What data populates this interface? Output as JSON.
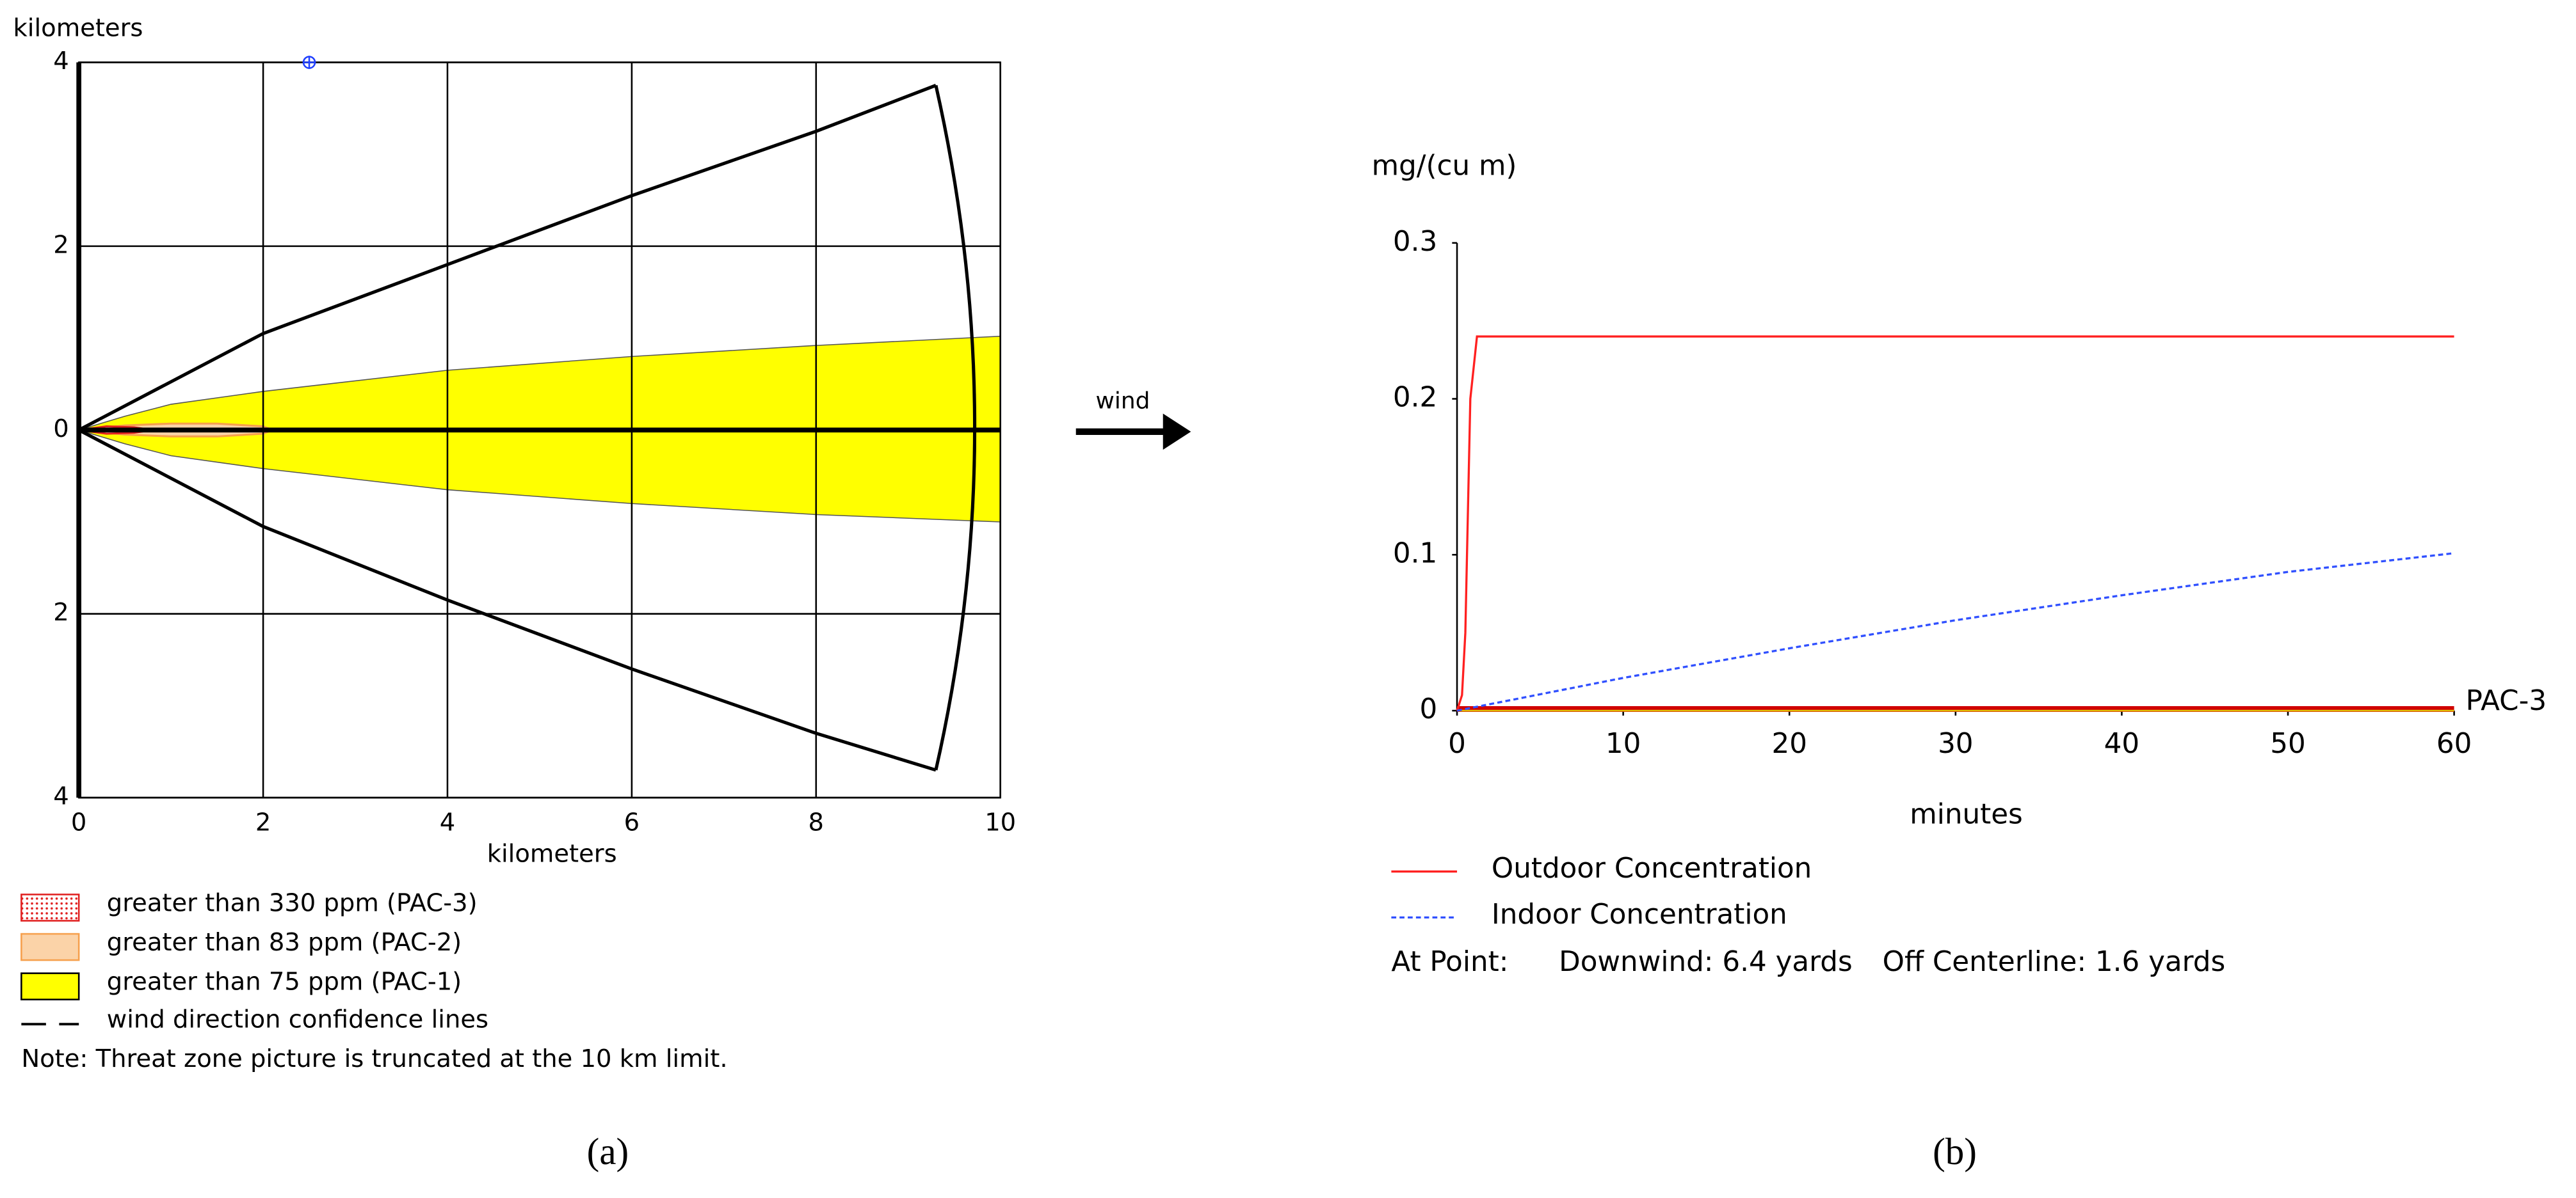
{
  "chart_data": [
    {
      "type": "threat_zone",
      "y_label": "kilometers",
      "x_label": "kilometers",
      "xlim": [
        0,
        10
      ],
      "xticks": [
        0,
        2,
        4,
        6,
        8,
        10
      ],
      "ylim": [
        -4,
        4
      ],
      "yticks": [
        {
          "value": -4,
          "label": "4"
        },
        {
          "value": -2,
          "label": "2"
        },
        0,
        2,
        4
      ],
      "grid": true,
      "zones": [
        {
          "name": "greater than 75 ppm (PAC-1)",
          "color": "#ffff00",
          "x": [
            0,
            0.5,
            1,
            2,
            4,
            6,
            8,
            10
          ],
          "upper": [
            0,
            0.15,
            0.28,
            0.42,
            0.65,
            0.8,
            0.92,
            1.02
          ],
          "lower": [
            0,
            -0.15,
            -0.28,
            -0.42,
            -0.65,
            -0.8,
            -0.92,
            -1.0
          ]
        },
        {
          "name": "greater than 83 ppm (PAC-2)",
          "color": "#f6a04d",
          "x": [
            0,
            0.5,
            1,
            1.5,
            2,
            2.1
          ],
          "upper": [
            0,
            0.05,
            0.07,
            0.07,
            0.04,
            0
          ],
          "lower": [
            0,
            -0.05,
            -0.07,
            -0.07,
            -0.04,
            0
          ]
        },
        {
          "name": "greater than 330 ppm (PAC-3)",
          "color": "#e02020",
          "x": [
            0,
            0.3,
            0.6,
            0.8
          ],
          "upper": [
            0,
            0.04,
            0.03,
            0
          ],
          "lower": [
            0,
            -0.04,
            -0.03,
            0
          ]
        }
      ],
      "confidence_lines": {
        "name": "wind direction confidence lines",
        "color": "#000000",
        "x": [
          0,
          2,
          4,
          6,
          8,
          9.3
        ],
        "upper": [
          0,
          1.05,
          1.8,
          2.55,
          3.25,
          3.75
        ],
        "lower": [
          0,
          -1.05,
          -1.85,
          -2.6,
          -3.3,
          -3.7
        ]
      },
      "marker": {
        "x": 2.5,
        "y": 4,
        "color": "#2040ff"
      },
      "note": "Note: Threat zone picture is truncated at the 10 km limit.",
      "panel_label": "(a)"
    },
    {
      "type": "line",
      "y_label": "mg/(cu m)",
      "x_label": "minutes",
      "xlim": [
        0,
        60
      ],
      "xticks": [
        0,
        10,
        20,
        30,
        40,
        50,
        60
      ],
      "ylim": [
        0,
        0.3
      ],
      "yticks": [
        0,
        0.1,
        0.2,
        0.3
      ],
      "grid": false,
      "series": [
        {
          "name": "Outdoor Concentration",
          "color": "#ff2020",
          "style": "solid",
          "x": [
            0,
            0.3,
            0.5,
            0.8,
            1,
            1.2,
            60
          ],
          "values": [
            0,
            0.01,
            0.05,
            0.2,
            0.22,
            0.24,
            0.24
          ]
        },
        {
          "name": "Indoor Concentration",
          "color": "#3050ff",
          "style": "dotted",
          "x": [
            0,
            10,
            20,
            30,
            40,
            50,
            60
          ],
          "values": [
            0,
            0.021,
            0.04,
            0.058,
            0.074,
            0.089,
            0.101
          ]
        }
      ],
      "threshold": {
        "label": "PAC-3",
        "value": 0,
        "color": "#d00000"
      },
      "point_info": [
        "At Point:",
        "Downwind: 6.4 yards",
        "Off Centerline: 1.6 yards"
      ],
      "panel_label": "(b)"
    }
  ],
  "wind_label": "wind"
}
